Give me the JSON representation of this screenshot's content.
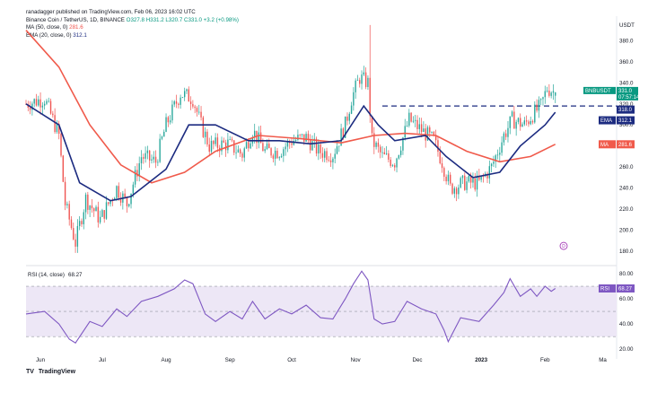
{
  "header": {
    "author_line": "ranadagger published on TradingView.com, Feb 06, 2023 16:02 UTC",
    "symbol_line": "Binance Coin / TetherUS, 1D, BINANCE",
    "ohlc": "O327.8 H331.2 L320.7 C331.0 +3.2 (+0.98%)",
    "ma_line_label": "MA (50, close, 0)",
    "ma_line_value": "281.6",
    "ema_line_label": "EMA (20, close, 0)",
    "ema_line_value": "312.1",
    "rsi_line_label": "RSI (14, close)",
    "rsi_line_value": "68.27"
  },
  "footer": {
    "brand": "TradingView",
    "logo": "TV"
  },
  "colors": {
    "up": "#26a69a",
    "down": "#ef5350",
    "ema": "#1c2b80",
    "ma": "#f05a4b",
    "rsi": "#7e57c2",
    "rsi_band": "#ede7f6",
    "resistance": "#1c2b80",
    "price_tag": "#089981"
  },
  "chart_data": [
    {
      "type": "candlestick",
      "title": "Binance Coin / TetherUS, 1D, BINANCE",
      "currency_label": "USDT",
      "yticks": [
        180.0,
        200.0,
        220.0,
        240.0,
        260.0,
        280.0,
        300.0,
        320.0,
        340.0,
        360.0,
        380.0
      ],
      "ylim": [
        168,
        400
      ],
      "xticks": [
        "Jun",
        "Jul",
        "Aug",
        "Sep",
        "Oct",
        "Nov",
        "Dec",
        "2023",
        "Feb",
        "Ma"
      ],
      "resistance_level": 318.0,
      "price_tag_label": "BNBUSDT",
      "price_tag_value": "331.0",
      "price_tag_countdown": "07:57:14",
      "resistance_tag": "318.0",
      "ema_tag_label": "EMA",
      "ema_tag_value": "312.1",
      "ma_tag_label": "MA",
      "ma_tag_value": "281.6",
      "event_marker": "D",
      "anchors": [
        {
          "d": "2022-05-25",
          "c": 320
        },
        {
          "d": "2022-06-03",
          "c": 325
        },
        {
          "d": "2022-06-10",
          "c": 290
        },
        {
          "d": "2022-06-13",
          "c": 225
        },
        {
          "d": "2022-06-18",
          "c": 188
        },
        {
          "d": "2022-06-23",
          "c": 230
        },
        {
          "d": "2022-06-30",
          "c": 210
        },
        {
          "d": "2022-07-08",
          "c": 240
        },
        {
          "d": "2022-07-13",
          "c": 225
        },
        {
          "d": "2022-07-20",
          "c": 270
        },
        {
          "d": "2022-07-27",
          "c": 265
        },
        {
          "d": "2022-08-01",
          "c": 300
        },
        {
          "d": "2022-08-08",
          "c": 330
        },
        {
          "d": "2022-08-14",
          "c": 325
        },
        {
          "d": "2022-08-18",
          "c": 300
        },
        {
          "d": "2022-08-22",
          "c": 280
        },
        {
          "d": "2022-08-31",
          "c": 282
        },
        {
          "d": "2022-09-07",
          "c": 272
        },
        {
          "d": "2022-09-12",
          "c": 295
        },
        {
          "d": "2022-09-18",
          "c": 275
        },
        {
          "d": "2022-09-25",
          "c": 275
        },
        {
          "d": "2022-10-01",
          "c": 285
        },
        {
          "d": "2022-10-08",
          "c": 288
        },
        {
          "d": "2022-10-14",
          "c": 275
        },
        {
          "d": "2022-10-21",
          "c": 272
        },
        {
          "d": "2022-10-27",
          "c": 300
        },
        {
          "d": "2022-10-30",
          "c": 325
        },
        {
          "d": "2022-11-03",
          "c": 345
        },
        {
          "d": "2022-11-07",
          "c": 340
        },
        {
          "d": "2022-11-09",
          "c": 285
        },
        {
          "d": "2022-11-14",
          "c": 270
        },
        {
          "d": "2022-11-20",
          "c": 265
        },
        {
          "d": "2022-11-27",
          "c": 305
        },
        {
          "d": "2022-12-03",
          "c": 295
        },
        {
          "d": "2022-12-09",
          "c": 285
        },
        {
          "d": "2022-12-13",
          "c": 265
        },
        {
          "d": "2022-12-17",
          "c": 240
        },
        {
          "d": "2022-12-24",
          "c": 245
        },
        {
          "d": "2022-12-31",
          "c": 245
        },
        {
          "d": "2023-01-06",
          "c": 260
        },
        {
          "d": "2023-01-12",
          "c": 290
        },
        {
          "d": "2023-01-16",
          "c": 305
        },
        {
          "d": "2023-01-22",
          "c": 300
        },
        {
          "d": "2023-01-26",
          "c": 310
        },
        {
          "d": "2023-01-30",
          "c": 318
        },
        {
          "d": "2023-02-02",
          "c": 335
        },
        {
          "d": "2023-02-06",
          "c": 331
        }
      ],
      "spike_high": {
        "d": "2022-11-08",
        "h": 395
      },
      "ema20": [
        {
          "d": "2022-05-25",
          "v": 320
        },
        {
          "d": "2022-06-10",
          "v": 300
        },
        {
          "d": "2022-06-20",
          "v": 245
        },
        {
          "d": "2022-07-05",
          "v": 228
        },
        {
          "d": "2022-07-15",
          "v": 232
        },
        {
          "d": "2022-08-01",
          "v": 258
        },
        {
          "d": "2022-08-12",
          "v": 300
        },
        {
          "d": "2022-08-25",
          "v": 300
        },
        {
          "d": "2022-09-10",
          "v": 285
        },
        {
          "d": "2022-09-25",
          "v": 285
        },
        {
          "d": "2022-10-10",
          "v": 282
        },
        {
          "d": "2022-10-25",
          "v": 285
        },
        {
          "d": "2022-11-05",
          "v": 318
        },
        {
          "d": "2022-11-12",
          "v": 300
        },
        {
          "d": "2022-11-20",
          "v": 285
        },
        {
          "d": "2022-12-05",
          "v": 290
        },
        {
          "d": "2022-12-15",
          "v": 270
        },
        {
          "d": "2022-12-28",
          "v": 250
        },
        {
          "d": "2023-01-10",
          "v": 255
        },
        {
          "d": "2023-01-20",
          "v": 280
        },
        {
          "d": "2023-02-01",
          "v": 300
        },
        {
          "d": "2023-02-06",
          "v": 312.1
        }
      ],
      "ma50": [
        {
          "d": "2022-05-25",
          "v": 390
        },
        {
          "d": "2022-06-10",
          "v": 355
        },
        {
          "d": "2022-06-25",
          "v": 300
        },
        {
          "d": "2022-07-10",
          "v": 262
        },
        {
          "d": "2022-07-25",
          "v": 245
        },
        {
          "d": "2022-08-10",
          "v": 255
        },
        {
          "d": "2022-08-25",
          "v": 275
        },
        {
          "d": "2022-09-15",
          "v": 290
        },
        {
          "d": "2022-10-05",
          "v": 287
        },
        {
          "d": "2022-10-25",
          "v": 283
        },
        {
          "d": "2022-11-10",
          "v": 290
        },
        {
          "d": "2022-11-25",
          "v": 292
        },
        {
          "d": "2022-12-10",
          "v": 290
        },
        {
          "d": "2022-12-25",
          "v": 275
        },
        {
          "d": "2023-01-10",
          "v": 265
        },
        {
          "d": "2023-01-25",
          "v": 270
        },
        {
          "d": "2023-02-06",
          "v": 281.6
        }
      ]
    },
    {
      "type": "line",
      "title": "RSI (14, close)",
      "yticks": [
        20.0,
        40.0,
        60.0,
        80.0
      ],
      "ylim": [
        18,
        85
      ],
      "band": [
        30,
        70
      ],
      "midline": 50,
      "last_value": "68.27",
      "rsi": [
        {
          "d": "2022-05-25",
          "v": 48
        },
        {
          "d": "2022-06-03",
          "v": 50
        },
        {
          "d": "2022-06-10",
          "v": 40
        },
        {
          "d": "2022-06-15",
          "v": 28
        },
        {
          "d": "2022-06-18",
          "v": 25
        },
        {
          "d": "2022-06-25",
          "v": 42
        },
        {
          "d": "2022-07-01",
          "v": 38
        },
        {
          "d": "2022-07-08",
          "v": 52
        },
        {
          "d": "2022-07-13",
          "v": 46
        },
        {
          "d": "2022-07-20",
          "v": 58
        },
        {
          "d": "2022-07-28",
          "v": 62
        },
        {
          "d": "2022-08-05",
          "v": 68
        },
        {
          "d": "2022-08-10",
          "v": 75
        },
        {
          "d": "2022-08-14",
          "v": 72
        },
        {
          "d": "2022-08-20",
          "v": 48
        },
        {
          "d": "2022-08-25",
          "v": 42
        },
        {
          "d": "2022-09-01",
          "v": 50
        },
        {
          "d": "2022-09-07",
          "v": 44
        },
        {
          "d": "2022-09-12",
          "v": 58
        },
        {
          "d": "2022-09-18",
          "v": 44
        },
        {
          "d": "2022-09-25",
          "v": 52
        },
        {
          "d": "2022-10-01",
          "v": 48
        },
        {
          "d": "2022-10-08",
          "v": 55
        },
        {
          "d": "2022-10-15",
          "v": 45
        },
        {
          "d": "2022-10-21",
          "v": 44
        },
        {
          "d": "2022-10-27",
          "v": 60
        },
        {
          "d": "2022-10-31",
          "v": 72
        },
        {
          "d": "2022-11-04",
          "v": 82
        },
        {
          "d": "2022-11-07",
          "v": 75
        },
        {
          "d": "2022-11-10",
          "v": 44
        },
        {
          "d": "2022-11-14",
          "v": 40
        },
        {
          "d": "2022-11-20",
          "v": 42
        },
        {
          "d": "2022-11-26",
          "v": 58
        },
        {
          "d": "2022-12-03",
          "v": 52
        },
        {
          "d": "2022-12-10",
          "v": 48
        },
        {
          "d": "2022-12-14",
          "v": 35
        },
        {
          "d": "2022-12-16",
          "v": 26
        },
        {
          "d": "2022-12-22",
          "v": 45
        },
        {
          "d": "2022-12-31",
          "v": 42
        },
        {
          "d": "2023-01-07",
          "v": 55
        },
        {
          "d": "2023-01-12",
          "v": 65
        },
        {
          "d": "2023-01-15",
          "v": 76
        },
        {
          "d": "2023-01-20",
          "v": 62
        },
        {
          "d": "2023-01-25",
          "v": 68
        },
        {
          "d": "2023-01-28",
          "v": 62
        },
        {
          "d": "2023-02-01",
          "v": 70
        },
        {
          "d": "2023-02-04",
          "v": 66
        },
        {
          "d": "2023-02-06",
          "v": 68.27
        }
      ]
    }
  ]
}
